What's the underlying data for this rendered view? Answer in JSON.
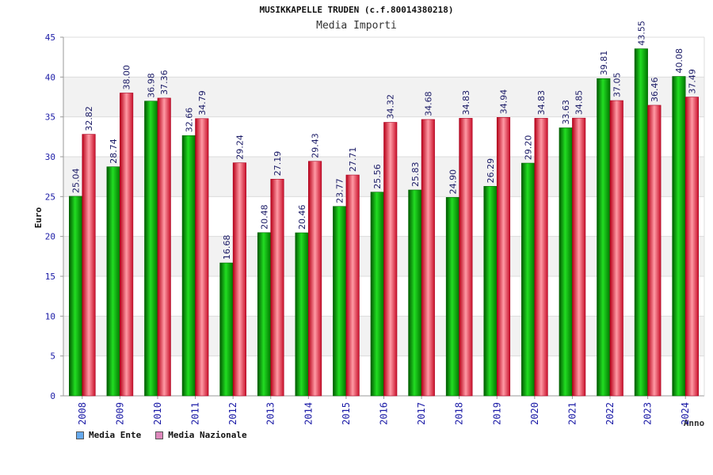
{
  "chart_data": {
    "type": "bar",
    "title": "MUSIKKAPELLE TRUDEN (c.f.80014380218)",
    "subtitle": "Media Importi",
    "xlabel": "Anno",
    "ylabel": "Euro",
    "ylim": [
      0,
      45
    ],
    "yticks": [
      0,
      5,
      10,
      15,
      20,
      25,
      30,
      35,
      40,
      45
    ],
    "grid": "horizontal bands",
    "legend_position": "bottom-left",
    "categories": [
      "2008",
      "2009",
      "2010",
      "2011",
      "2012",
      "2013",
      "2014",
      "2015",
      "2016",
      "2017",
      "2018",
      "2019",
      "2020",
      "2021",
      "2022",
      "2023",
      "2024"
    ],
    "series": [
      {
        "name": "Media Ente",
        "color": "#00aa00",
        "values": [
          25.04,
          28.74,
          36.98,
          32.66,
          16.68,
          20.48,
          20.46,
          23.77,
          25.56,
          25.83,
          24.9,
          26.29,
          29.2,
          33.63,
          39.81,
          43.55,
          40.08
        ],
        "labels": [
          "25.04",
          "28.74",
          "36.98",
          "32.66",
          "16.68",
          "20.48",
          "20.46",
          "23.77",
          "25.56",
          "25.83",
          "24.90",
          "26.29",
          "29.20",
          "33.63",
          "39.81",
          "43.55",
          "40.08"
        ]
      },
      {
        "name": "Media Nazionale",
        "color": "#dd2233",
        "values": [
          32.82,
          38.0,
          37.36,
          34.79,
          29.24,
          27.19,
          29.43,
          27.71,
          34.32,
          34.68,
          34.83,
          34.94,
          34.83,
          34.85,
          37.05,
          36.46,
          37.49
        ],
        "labels": [
          "32.82",
          "38.00",
          "37.36",
          "34.79",
          "29.24",
          "27.19",
          "29.43",
          "27.71",
          "34.32",
          "34.68",
          "34.83",
          "34.94",
          "34.83",
          "34.85",
          "37.05",
          "36.46",
          "37.49"
        ]
      }
    ]
  },
  "legend": {
    "items": [
      {
        "label": "Media Ente",
        "swatch_color": "#66aaee"
      },
      {
        "label": "Media Nazionale",
        "swatch_color": "#dd88bb"
      }
    ]
  }
}
